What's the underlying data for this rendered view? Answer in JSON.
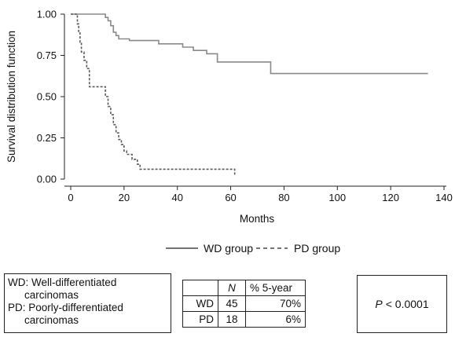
{
  "chart_data": {
    "type": "line",
    "title": "",
    "xlabel": "Months",
    "ylabel": "Survival distribution function",
    "xlim": [
      0,
      140
    ],
    "ylim": [
      0,
      1
    ],
    "xticks": [
      "0",
      "20",
      "40",
      "60",
      "80",
      "100",
      "120",
      "140"
    ],
    "yticks": [
      "0.00",
      "0.25",
      "0.50",
      "0.75",
      "1.00"
    ],
    "grid": false,
    "legend_position": "bottom",
    "series": [
      {
        "name": "WD group",
        "style": "solid",
        "color": "#8a8a8a",
        "x": [
          0,
          13,
          14,
          15,
          16,
          17,
          18,
          22,
          33,
          42,
          46,
          51,
          55,
          75,
          134
        ],
        "y": [
          1.0,
          0.98,
          0.96,
          0.93,
          0.89,
          0.87,
          0.85,
          0.84,
          0.82,
          0.8,
          0.78,
          0.76,
          0.71,
          0.64,
          0.64
        ]
      },
      {
        "name": "PD group",
        "style": "dashed",
        "color": "#5a5a5a",
        "x": [
          0,
          2.5,
          3,
          3.5,
          4,
          5,
          6,
          7,
          13,
          14,
          15,
          16,
          17,
          18,
          19,
          20,
          21,
          23,
          25,
          26,
          61.5
        ],
        "y": [
          1.0,
          0.94,
          0.89,
          0.83,
          0.77,
          0.72,
          0.67,
          0.56,
          0.5,
          0.44,
          0.39,
          0.33,
          0.28,
          0.24,
          0.21,
          0.17,
          0.15,
          0.12,
          0.09,
          0.06,
          0.06
        ],
        "end_drop_to": 0.02
      }
    ]
  },
  "definitions": [
    {
      "abbr": "WD:",
      "text": "Well-differentiated",
      "cont": "carcinomas"
    },
    {
      "abbr": "PD:",
      "text": "Poorly-differentiated",
      "cont": "carcinomas"
    }
  ],
  "table": {
    "headers": [
      "",
      "N",
      "% 5-year"
    ],
    "rows": [
      [
        "WD",
        "45",
        "70%"
      ],
      [
        "PD",
        "18",
        "6%"
      ]
    ]
  },
  "pvalue": {
    "symbol": "P",
    "text": "< 0.0001"
  }
}
